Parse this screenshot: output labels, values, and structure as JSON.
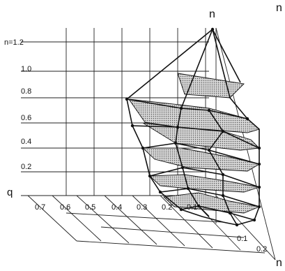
{
  "labels": {
    "top_n": "n",
    "top_right_n": "n",
    "bottom_right_n": "n",
    "q_axis": "q",
    "n_values": [
      "n=1.2",
      "1.0",
      "0.8",
      "0.6",
      "0.4",
      "0.2"
    ],
    "q_values": [
      "0.7",
      "0.6",
      "0.5",
      "0.4",
      "0.3",
      "0.2",
      "0.1"
    ],
    "p_values": [
      "0.2",
      "0.1"
    ]
  },
  "colors": {
    "ink": "#111111",
    "background": "#ffffff"
  }
}
